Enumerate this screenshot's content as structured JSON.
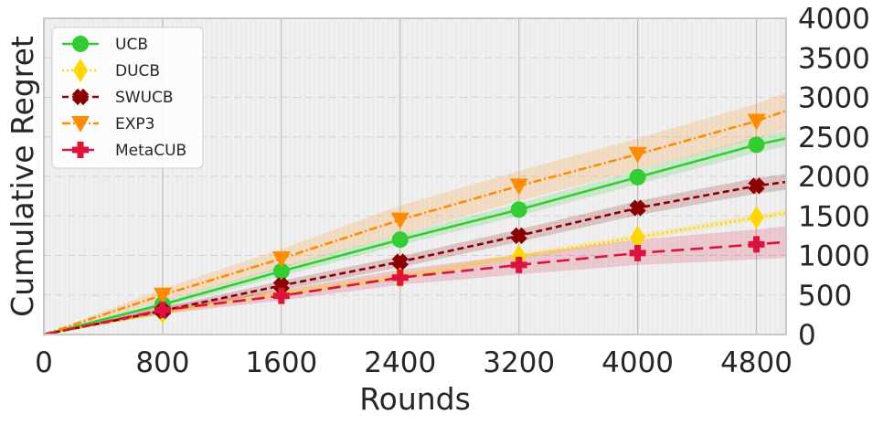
{
  "chart_data": {
    "type": "line",
    "xlabel": "Rounds",
    "ylabel": "Cumulative Regret",
    "xlim": [
      0,
      5000
    ],
    "ylim": [
      0,
      4000
    ],
    "x_ticks": [
      "0",
      "800",
      "1600",
      "2400",
      "3200",
      "4000",
      "4800"
    ],
    "y_ticks": [
      "0",
      "500",
      "1000",
      "1500",
      "2000",
      "2500",
      "3000",
      "3500",
      "4000"
    ],
    "y_axis_side": "right",
    "grid": true,
    "legend_position": "top-left",
    "x": [
      0,
      800,
      1600,
      2400,
      3200,
      4000,
      4800,
      5000
    ],
    "series": [
      {
        "name": "UCB",
        "color": "#32cd32",
        "linestyle": "solid",
        "marker": "circle",
        "values": [
          0,
          380,
          800,
          1200,
          1580,
          1990,
          2400,
          2480
        ],
        "band": [
          [
            0,
            0
          ],
          [
            340,
            420
          ],
          [
            740,
            860
          ],
          [
            1130,
            1270
          ],
          [
            1500,
            1660
          ],
          [
            1900,
            2080
          ],
          [
            2300,
            2500
          ],
          [
            2380,
            2580
          ]
        ]
      },
      {
        "name": "DUCB",
        "color": "#ffd700",
        "linestyle": "dotted",
        "marker": "diamond",
        "values": [
          0,
          280,
          520,
          730,
          990,
          1230,
          1480,
          1540
        ],
        "band": [
          [
            0,
            0
          ],
          [
            250,
            310
          ],
          [
            480,
            560
          ],
          [
            690,
            770
          ],
          [
            950,
            1030
          ],
          [
            1190,
            1270
          ],
          [
            1440,
            1520
          ],
          [
            1500,
            1580
          ]
        ]
      },
      {
        "name": "SWUCB",
        "color": "#8b0000",
        "linestyle": "dashed",
        "marker": "x",
        "values": [
          0,
          300,
          620,
          920,
          1250,
          1600,
          1880,
          1930
        ],
        "band": [
          [
            0,
            0
          ],
          [
            260,
            340
          ],
          [
            560,
            680
          ],
          [
            850,
            990
          ],
          [
            1170,
            1330
          ],
          [
            1510,
            1690
          ],
          [
            1780,
            1980
          ],
          [
            1830,
            2030
          ]
        ]
      },
      {
        "name": "EXP3",
        "color": "#ff8c00",
        "linestyle": "dashdot",
        "marker": "triangle-down",
        "values": [
          0,
          500,
          960,
          1450,
          1880,
          2280,
          2700,
          2830
        ],
        "band": [
          [
            0,
            0
          ],
          [
            420,
            580
          ],
          [
            840,
            1080
          ],
          [
            1270,
            1630
          ],
          [
            1690,
            2070
          ],
          [
            2080,
            2480
          ],
          [
            2480,
            2920
          ],
          [
            2600,
            3060
          ]
        ]
      },
      {
        "name": "MetaCUB",
        "color": "#dc143c",
        "linestyle": "longdash",
        "marker": "plus",
        "values": [
          0,
          310,
          490,
          720,
          880,
          1030,
          1140,
          1170
        ],
        "band": [
          [
            0,
            0
          ],
          [
            260,
            360
          ],
          [
            430,
            560
          ],
          [
            630,
            820
          ],
          [
            760,
            1010
          ],
          [
            880,
            1200
          ],
          [
            950,
            1330
          ],
          [
            970,
            1370
          ]
        ]
      }
    ]
  }
}
